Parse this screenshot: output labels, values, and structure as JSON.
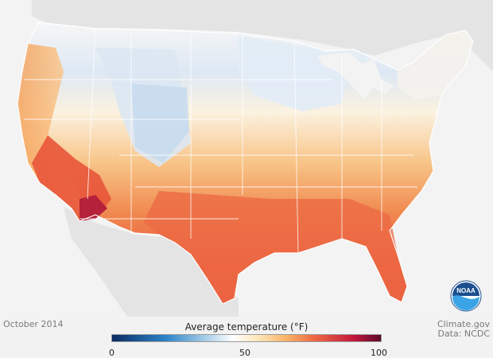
{
  "caption": {
    "month": "October 2014"
  },
  "credits": {
    "site": "Climate.gov",
    "data": "Data: NCDC"
  },
  "logo": {
    "text": "NOAA"
  },
  "legend": {
    "title": "Average temperature (°F)",
    "min_label": "0",
    "mid_label": "50",
    "max_label": "100",
    "stops": [
      {
        "value": 0,
        "color": "#0b2a63"
      },
      {
        "value": 20,
        "color": "#2c84c9"
      },
      {
        "value": 35,
        "color": "#a9cfe9"
      },
      {
        "value": 45,
        "color": "#ffffff"
      },
      {
        "value": 55,
        "color": "#fde4b4"
      },
      {
        "value": 65,
        "color": "#f9b266"
      },
      {
        "value": 75,
        "color": "#ef6a44"
      },
      {
        "value": 90,
        "color": "#c2173b"
      },
      {
        "value": 100,
        "color": "#5b0a2b"
      }
    ]
  },
  "colors": {
    "land_background": "#e0e0e0",
    "water_background": "#f3f3f3",
    "state_border": "#ffffff"
  }
}
